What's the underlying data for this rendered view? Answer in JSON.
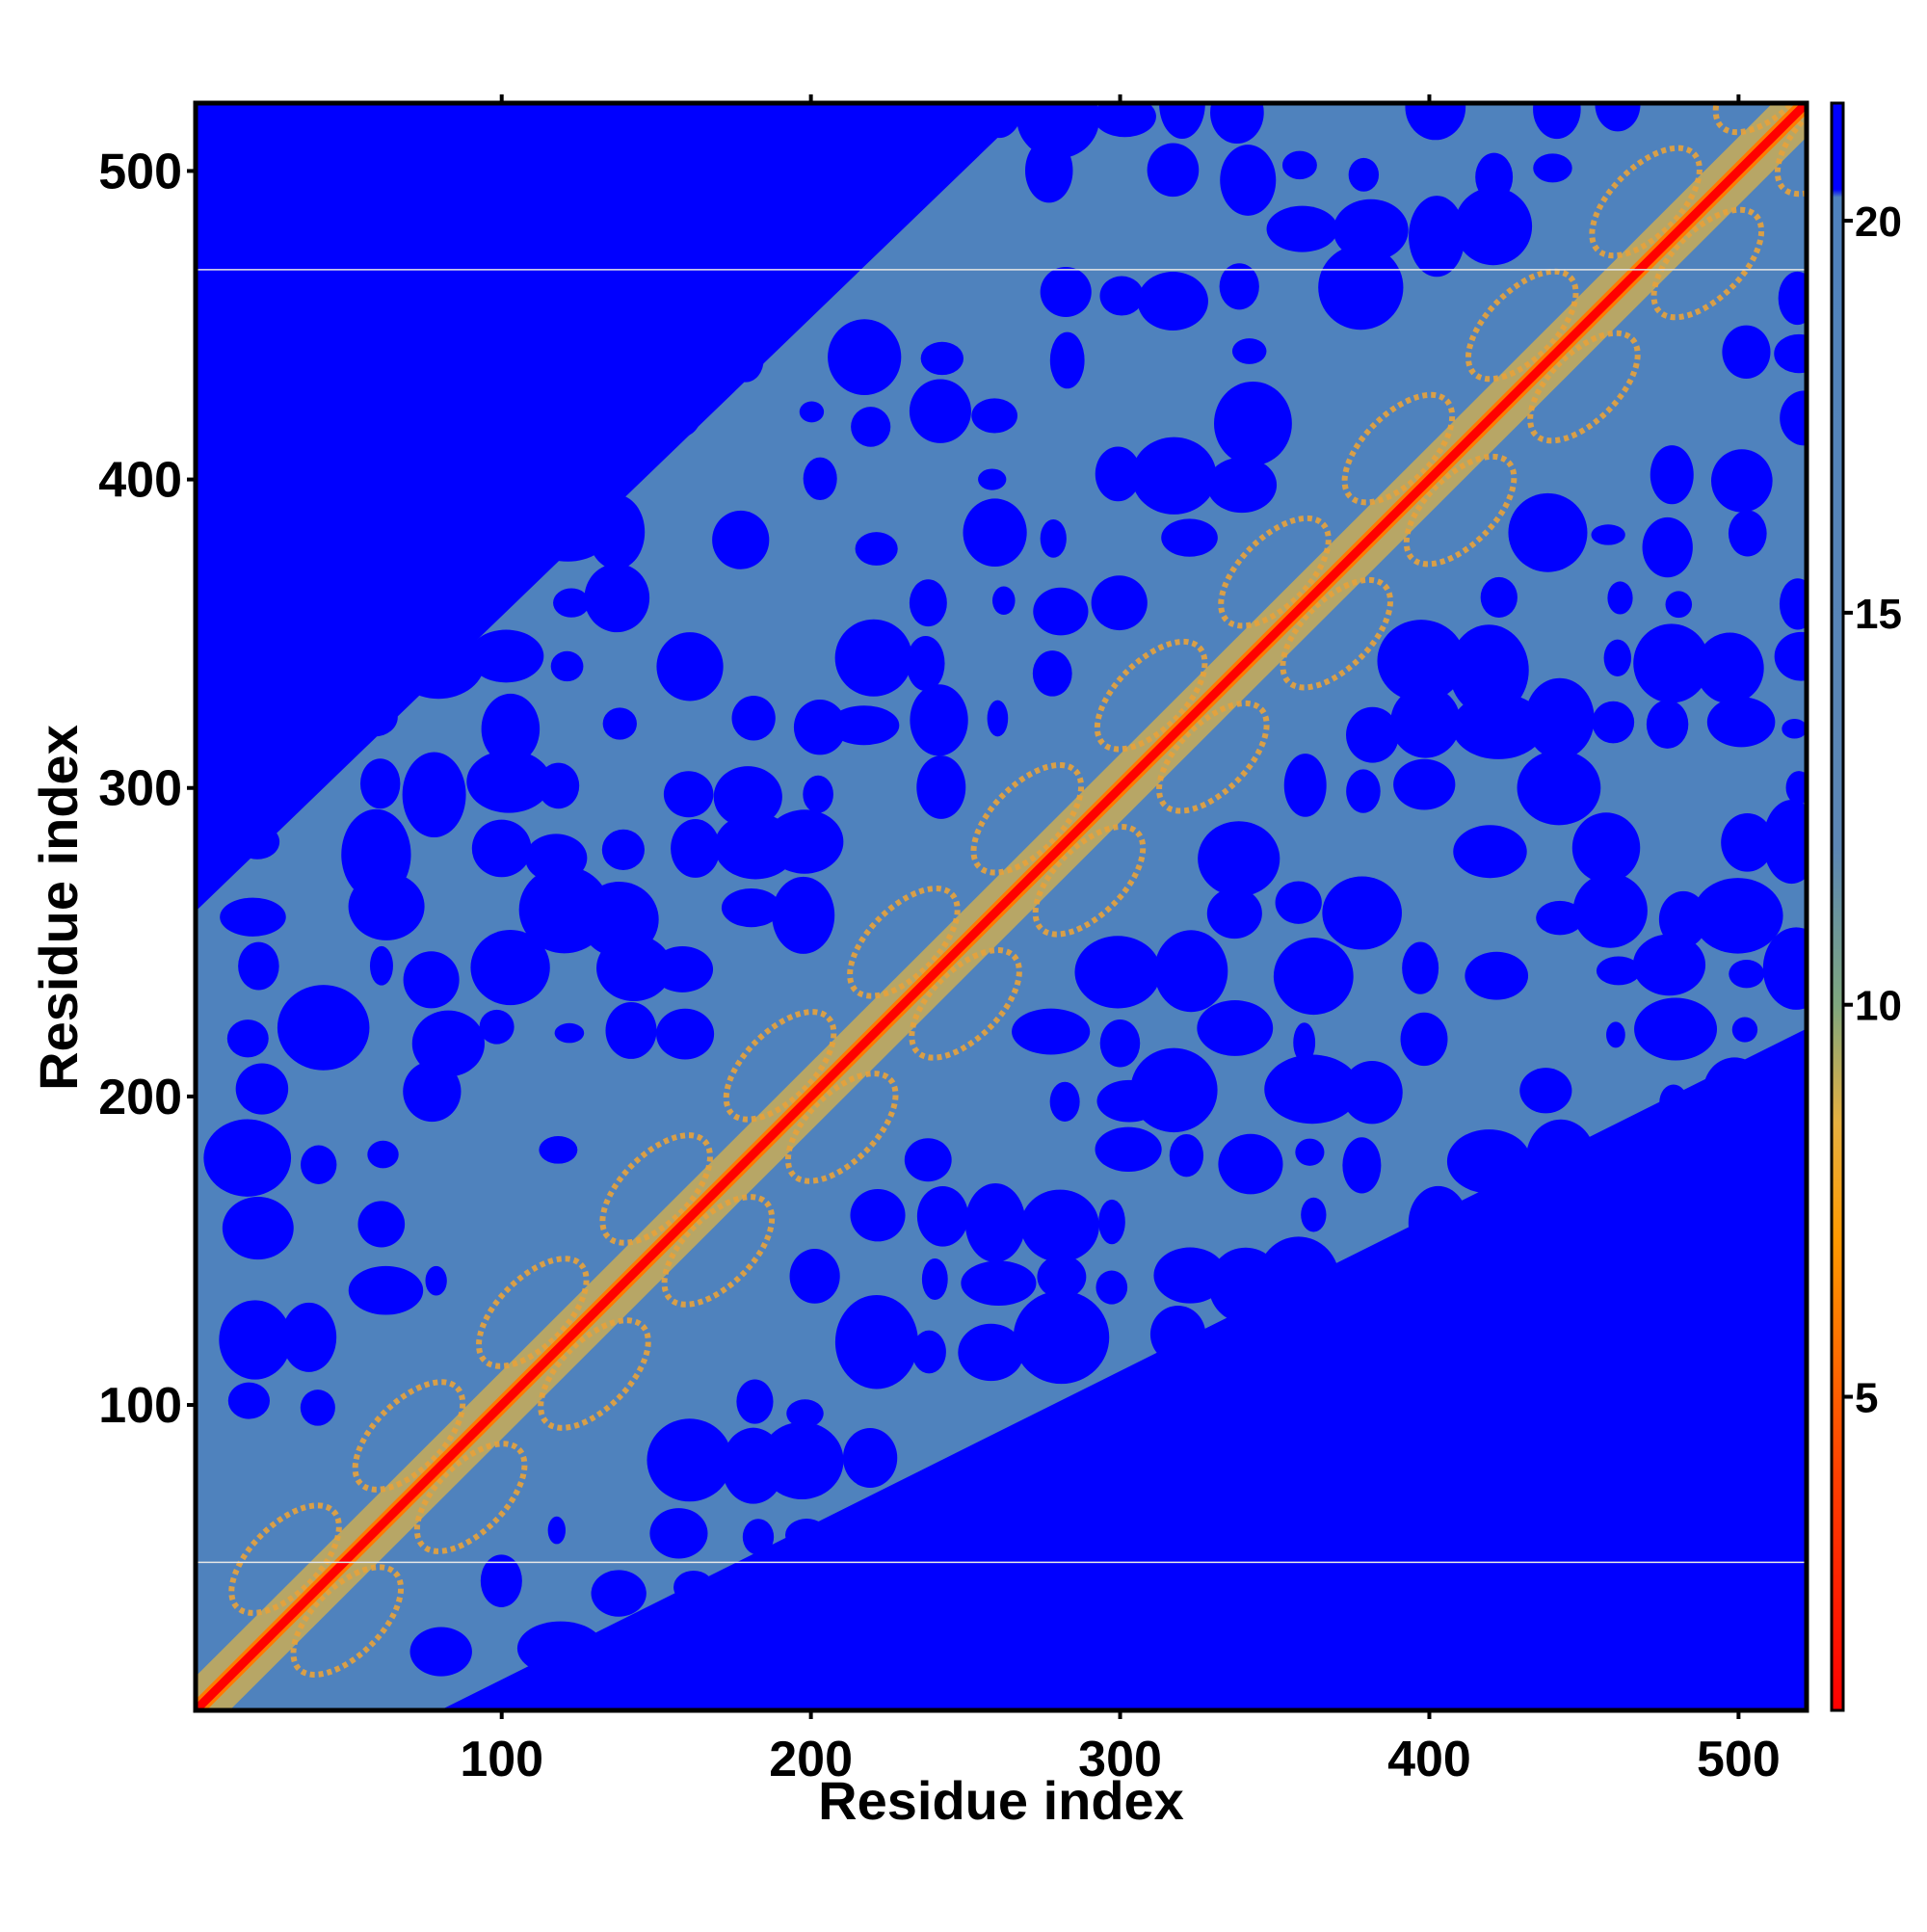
{
  "chart_data": {
    "type": "heatmap",
    "title": "",
    "xlabel": "Residue index",
    "ylabel": "Residue index",
    "xlim": [
      1,
      522
    ],
    "ylim": [
      1,
      522
    ],
    "x_ticks": [
      100,
      200,
      300,
      400,
      500
    ],
    "y_ticks": [
      100,
      200,
      300,
      400,
      500
    ],
    "x_tick_labels": [
      "100",
      "200",
      "300",
      "400",
      "500"
    ],
    "y_tick_labels": [
      "100",
      "200",
      "300",
      "400",
      "500"
    ],
    "colorbar": {
      "range": [
        1,
        21.5
      ],
      "ticks": [
        5,
        10,
        15,
        20
      ],
      "tick_labels": [
        "5",
        "10",
        "15",
        "20"
      ],
      "colors": [
        {
          "value": 1,
          "color": "#ff0000"
        },
        {
          "value": 4,
          "color": "#ff4000"
        },
        {
          "value": 7,
          "color": "#ff9900"
        },
        {
          "value": 8.5,
          "color": "#e6b040"
        },
        {
          "value": 10,
          "color": "#7fa77f"
        },
        {
          "value": 12,
          "color": "#5c86b4"
        },
        {
          "value": 20.3,
          "color": "#4f82bd"
        },
        {
          "value": 20.4,
          "color": "#0000ff"
        },
        {
          "value": 21.5,
          "color": "#0000ff"
        }
      ]
    },
    "diagonal_color": "#ff0000",
    "background_color": "#0000ff",
    "contact_color": "#4f82bd",
    "repeat_period": 40,
    "horizontal_lines_y": [
      49,
      468
    ]
  }
}
